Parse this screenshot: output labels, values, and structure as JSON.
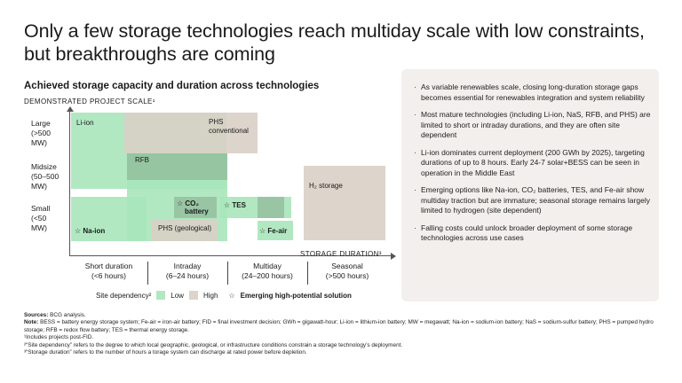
{
  "header": {
    "title": "Only a few storage technologies reach multiday scale with low constraints, but breakthroughs are coming"
  },
  "chart": {
    "subtitle": "Achieved storage capacity and duration across technologies",
    "y_axis_title": "DEMONSTRATED PROJECT SCALE¹",
    "x_axis_title": "STORAGE DURATION³",
    "y_rows": [
      {
        "line1": "Large",
        "line2": "(>500",
        "line3": "MW)"
      },
      {
        "line1": "Midsize",
        "line2": "(50–500",
        "line3": "MW)"
      },
      {
        "line1": "Small",
        "line2": "(<50",
        "line3": "MW)"
      }
    ],
    "x_cols": [
      {
        "line1": "Short duration",
        "line2": "(<6 hours)"
      },
      {
        "line1": "Intraday",
        "line2": "(6–24 hours)"
      },
      {
        "line1": "Multiday",
        "line2": "(24–200 hours)"
      },
      {
        "line1": "Seasonal",
        "line2": "(>500 hours)"
      }
    ],
    "labels": {
      "li_ion": "Li-ion",
      "phs_conv_1": "PHS",
      "phs_conv_2": "conventional",
      "rfb": "RFB",
      "h2": "H₂ storage",
      "co2_1": "CO₂",
      "co2_2": "battery",
      "tes": "TES",
      "phs_geo": "PHS (geological)",
      "na_ion": "Na-ion",
      "fe_air": "Fe-air"
    },
    "legend": {
      "title": "Site dependency²",
      "low": "Low",
      "high": "High",
      "emerging": "Emerging high-potential solution"
    },
    "colors": {
      "low": "#a8e6ba",
      "high": "#d9cfc7",
      "overlap": "#8fb797"
    }
  },
  "chart_data": {
    "type": "table",
    "title": "Achieved storage capacity and duration across technologies",
    "xlabel": "STORAGE DURATION³",
    "ylabel": "DEMONSTRATED PROJECT SCALE¹",
    "x_categories": [
      "Short duration (<6 hours)",
      "Intraday (6–24 hours)",
      "Multiday (24–200 hours)",
      "Seasonal (>500 hours)"
    ],
    "y_categories": [
      "Small (<50 MW)",
      "Midsize (50–500 MW)",
      "Large (>500 MW)"
    ],
    "technologies": [
      {
        "name": "Li-ion",
        "site_dependency": "Low",
        "emerging": false
      },
      {
        "name": "PHS conventional",
        "site_dependency": "High",
        "emerging": false
      },
      {
        "name": "RFB",
        "site_dependency": "Low",
        "emerging": false
      },
      {
        "name": "H₂ storage",
        "site_dependency": "High",
        "emerging": false
      },
      {
        "name": "CO₂ battery",
        "site_dependency": "Low",
        "emerging": true
      },
      {
        "name": "TES",
        "site_dependency": "Low",
        "emerging": true
      },
      {
        "name": "PHS (geological)",
        "site_dependency": "High",
        "emerging": false
      },
      {
        "name": "Na-ion",
        "site_dependency": "Low",
        "emerging": true
      },
      {
        "name": "Fe-air",
        "site_dependency": "Low",
        "emerging": true
      }
    ]
  },
  "bullets": [
    "As variable renewables scale, closing long-duration storage gaps becomes essential for renewables integration and system reliability",
    "Most mature technologies (including Li-ion, NaS, RFB, and PHS) are limited to short or intraday durations, and they are often site dependent",
    "Li-ion dominates current deployment (200 GWh by 2025), targeting durations of up to 8 hours. Early 24-7 solar+BESS can be seen in operation in the Middle East",
    "Emerging options like Na-ion, CO₂ batteries, TES, and Fe-air show multiday traction but are immature; seasonal storage remains largely limited to hydrogen (site dependent)",
    "Falling costs could unlock broader deployment of some storage technologies across use cases"
  ],
  "footnotes": {
    "sources_label": "Sources:",
    "sources": "BCG analysis.",
    "note_label": "Note:",
    "note": "BESS = battery energy storage system; Fe-air = iron-air battery; FID = final investment decision; GWh = gigawatt-hour; Li-ion = lithium-ion battery; MW = megawatt; Na-ion = sodium-ion battery; NaS = sodium-sulfur battery; PHS = pumped hydro storage; RFB = redox flow battery; TES = thermal energy storage.",
    "f1": "¹Includes projects post-FID.",
    "f2": "²“Site dependency” refers to the degree to which local geographic, geological, or infrastructure conditions constrain a storage technology’s deployment.",
    "f3": "³“Storage duration” refers to the number of hours a torage system can discharge at rated power before depletion."
  }
}
